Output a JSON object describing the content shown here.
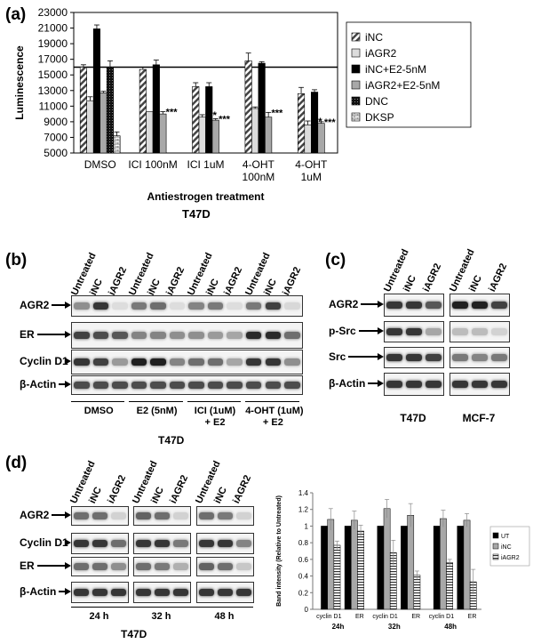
{
  "panel_a": {
    "letter": "(a)",
    "cell_line": "T47D",
    "chart_data": {
      "type": "bar",
      "title": "",
      "xlabel": "Antiestrogen treatment",
      "ylabel": "Luminescence",
      "ylim": [
        5000,
        23000
      ],
      "yticks": [
        5000,
        7000,
        9000,
        11000,
        13000,
        15000,
        17000,
        19000,
        21000,
        23000
      ],
      "reference_line": 16000,
      "grid": false,
      "legend_position": "right",
      "categories": [
        "DMSO",
        "ICI 100nM",
        "ICI 1uM",
        "4-OHT 100nM",
        "4-OHT 1uM"
      ],
      "category_lines": [
        [
          "DMSO"
        ],
        [
          "ICI 100nM"
        ],
        [
          "ICI 1uM"
        ],
        [
          "4-OHT",
          "100nM"
        ],
        [
          "4-OHT",
          "1uM"
        ]
      ],
      "series": [
        {
          "name": "iNC",
          "values": [
            16000,
            15700,
            13500,
            16800,
            12600
          ],
          "errors": [
            300,
            300,
            500,
            1000,
            800
          ],
          "pattern": "diag"
        },
        {
          "name": "iAGR2",
          "values": [
            11700,
            10300,
            9600,
            10700,
            8600
          ],
          "errors": [
            500,
            0,
            300,
            200,
            500
          ],
          "pattern": "light"
        },
        {
          "name": "iNC+E2-5nM",
          "values": [
            20900,
            16300,
            13500,
            16500,
            12800
          ],
          "errors": [
            500,
            600,
            500,
            200,
            300
          ],
          "pattern": "black"
        },
        {
          "name": "iAGR2+E2-5nM",
          "values": [
            12700,
            10000,
            9200,
            9600,
            8800
          ],
          "errors": [
            200,
            300,
            200,
            600,
            200
          ],
          "pattern": "gray"
        },
        {
          "name": "DNC",
          "values": [
            16000,
            null,
            null,
            null,
            null
          ],
          "errors": [
            800,
            0,
            0,
            0,
            0
          ],
          "pattern": "dots"
        },
        {
          "name": "DKSP",
          "values": [
            7200,
            null,
            null,
            null,
            null
          ],
          "errors": [
            500,
            0,
            0,
            0,
            0
          ],
          "pattern": "brick"
        }
      ],
      "annotations": [
        {
          "text": "***",
          "category": "ICI 100nM"
        },
        {
          "text": "***",
          "category": "ICI 1uM"
        },
        {
          "text": "***",
          "category": "ICI 1uM"
        },
        {
          "text": "***",
          "category": "4-OHT 100nM"
        },
        {
          "text": "***",
          "category": "4-OHT 1uM"
        },
        {
          "text": "***",
          "category": "4-OHT 1uM"
        }
      ]
    }
  },
  "panel_b": {
    "letter": "(b)",
    "cell_line": "T47D",
    "lane_labels": [
      "Untreated",
      "iNC",
      "iAGR2",
      "Untreated",
      "iNC",
      "iAGR2",
      "Untreated",
      "iNC",
      "iAGR2",
      "Untreated",
      "iNC",
      "iAGR2"
    ],
    "row_labels": [
      "AGR2",
      "ER",
      "Cyclin D1",
      "β-Actin"
    ],
    "group_labels": [
      {
        "lines": [
          "DMSO"
        ]
      },
      {
        "lines": [
          "E2 (5nM)"
        ]
      },
      {
        "lines": [
          "ICI (1uM)",
          "+ E2"
        ]
      },
      {
        "lines": [
          "4-OHT (1uM)",
          "+ E2"
        ]
      }
    ]
  },
  "panel_c": {
    "letter": "(c)",
    "lane_labels": [
      "Untreated",
      "iNC",
      "iAGR2",
      "Untreated",
      "iNC",
      "iAGR2"
    ],
    "row_labels": [
      "AGR2",
      "p-Src",
      "Src",
      "β-Actin"
    ],
    "group_labels": [
      "T47D",
      "MCF-7"
    ]
  },
  "panel_d": {
    "letter": "(d)",
    "cell_line": "T47D",
    "lane_labels": [
      "Untreated",
      "iNC",
      "iAGR2",
      "Untreated",
      "iNC",
      "iAGR2",
      "Untreated",
      "iNC",
      "iAGR2"
    ],
    "row_labels": [
      "AGR2",
      "Cyclin D1",
      "ER",
      "β-Actin"
    ],
    "time_labels": [
      "24 h",
      "32 h",
      "48 h"
    ],
    "chart_data": {
      "type": "bar",
      "title": "",
      "xlabel": "",
      "ylabel": "Band intensity (Relative to Untreated)",
      "ylim": [
        0,
        1.4
      ],
      "yticks": [
        "0",
        "0.2",
        "0.4",
        "0.6",
        "0.8",
        "1",
        "1.2",
        "1.4"
      ],
      "grid": false,
      "legend_position": "right",
      "categories": [
        "cyclin D1",
        "ER",
        "cyclin D1",
        "ER",
        "cyclin D1",
        "ER"
      ],
      "time_groups": [
        "24h",
        "32h",
        "48h"
      ],
      "series": [
        {
          "name": "UT",
          "values": [
            1,
            1,
            1,
            1,
            1,
            1
          ],
          "errors": [
            0,
            0,
            0,
            0,
            0,
            0
          ],
          "pattern": "black"
        },
        {
          "name": "iNC",
          "values": [
            1.08,
            1.07,
            1.21,
            1.13,
            1.09,
            1.07
          ],
          "errors": [
            0.13,
            0.11,
            0.11,
            0.14,
            0.1,
            0.08
          ],
          "pattern": "gray"
        },
        {
          "name": "iAGR2",
          "values": [
            0.77,
            0.94,
            0.68,
            0.41,
            0.56,
            0.33
          ],
          "errors": [
            0.05,
            0.07,
            0.15,
            0.05,
            0.04,
            0.15
          ],
          "pattern": "hstripe"
        }
      ]
    }
  }
}
